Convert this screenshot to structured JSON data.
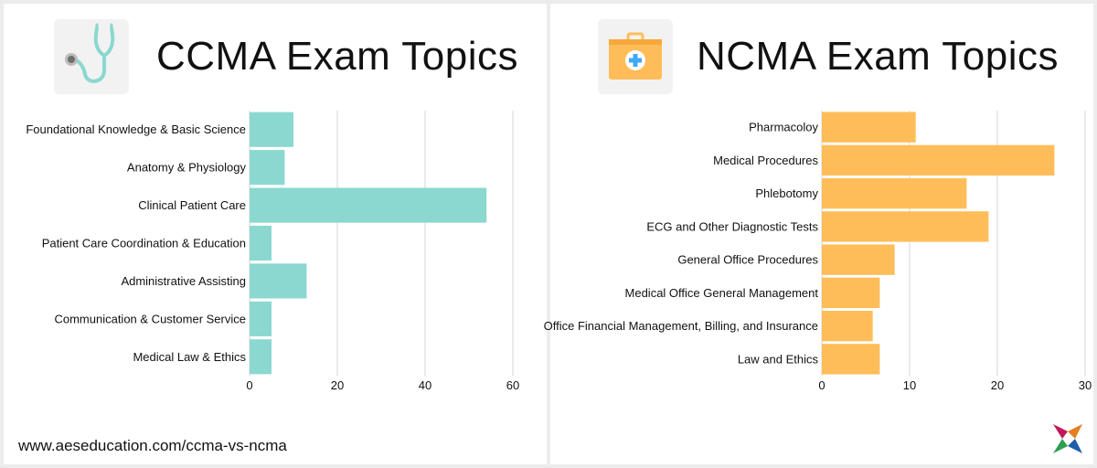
{
  "left_panel": {
    "title": "CCMA Exam Topics",
    "icon": "stethoscope-icon",
    "footer_url": "www.aeseducation.com/ccma-vs-ncma"
  },
  "right_panel": {
    "title": "NCMA Exam Topics",
    "icon": "first-aid-kit-icon",
    "logo": "aes-logo"
  },
  "colors": {
    "ccma_bar": "#8ad8d0",
    "ncma_bar": "#ffbd59",
    "grid": "#d6d6d6",
    "icon_teal": "#8ad8d0",
    "icon_orange": "#ffbd59",
    "icon_blue": "#3fa9f5"
  },
  "chart_data": [
    {
      "type": "bar",
      "orientation": "horizontal",
      "title": "CCMA Exam Topics",
      "categories": [
        "Foundational Knowledge & Basic Science",
        "Anatomy & Physiology",
        "Clinical Patient Care",
        "Patient Care Coordination & Education",
        "Administrative Assisting",
        "Communication & Customer Service",
        "Medical Law & Ethics"
      ],
      "values": [
        10,
        8,
        54,
        5,
        13,
        5,
        5
      ],
      "xlim": [
        0,
        60
      ],
      "xticks": [
        0,
        20,
        40,
        60
      ],
      "grid": true
    },
    {
      "type": "bar",
      "orientation": "horizontal",
      "title": "NCMA Exam Topics",
      "categories": [
        "Pharmacoloy",
        "Medical Procedures",
        "Phlebotomy",
        "ECG and Other Diagnostic Tests",
        "General Office Procedures",
        "Medical Office General Management",
        "Office Financial Management, Billing, and Insurance",
        "Law and Ethics"
      ],
      "values": [
        10.7,
        26.5,
        16.5,
        19,
        8.3,
        6.6,
        5.8,
        6.6
      ],
      "xlim": [
        0,
        30
      ],
      "xticks": [
        0,
        10,
        20,
        30
      ],
      "grid": true
    }
  ]
}
